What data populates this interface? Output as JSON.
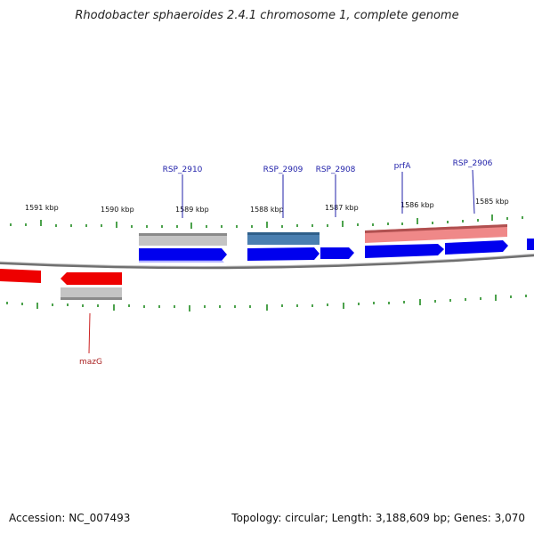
{
  "title": "Rhodobacter sphaeroides 2.4.1 chromosome 1, complete genome",
  "footer": {
    "accession_label": "Accession:",
    "accession": "NC_007493",
    "topology_label": "Topology:",
    "topology": "circular",
    "length_label": "Length:",
    "length": "3,188,609 bp",
    "genes_label": "Genes:",
    "genes": "3,070"
  },
  "scale_labels": [
    "1591 kbp",
    "1590 kbp",
    "1589 kbp",
    "1588 kbp",
    "1587 kbp",
    "1586 kbp",
    "1585 kbp"
  ],
  "gene_labels": [
    "RSP_2910",
    "RSP_2909",
    "RSP_2908",
    "prfA",
    "RSP_2906",
    "mazG"
  ],
  "colors": {
    "cds_forward": "#0000ee",
    "cds_reverse": "#ee0000",
    "gene_grey": "#bbbbbb",
    "gene_steelblue": "#4a7fb0",
    "gene_salmon": "#ee8080",
    "backbone": "#777777",
    "tick": "#228822",
    "label_forward": "#2222aa",
    "label_reverse": "#aa2222"
  }
}
